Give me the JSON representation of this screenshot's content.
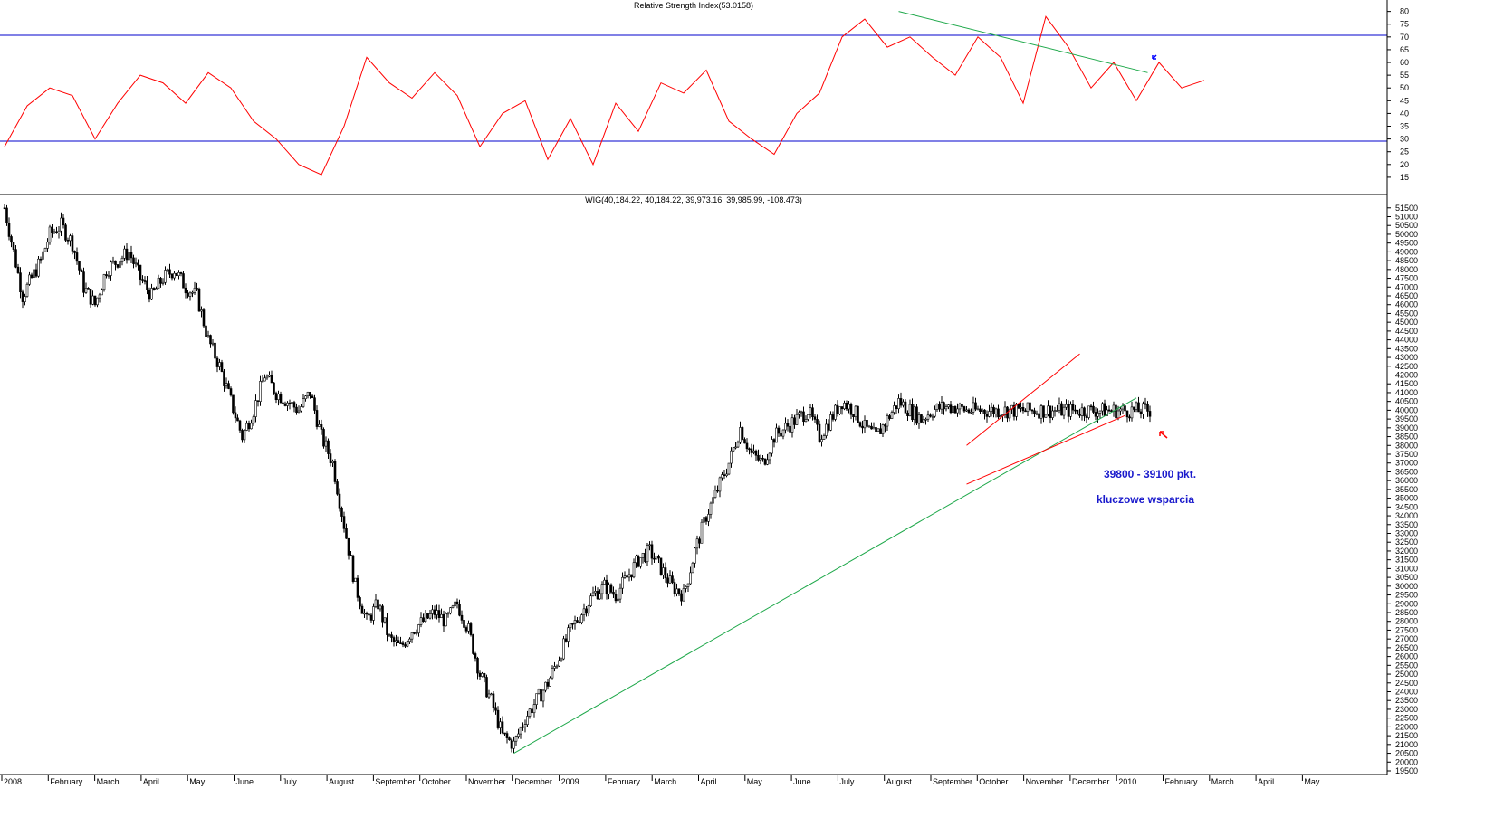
{
  "chart_data": [
    {
      "type": "line",
      "title": "Relative Strength Index(53.0158)",
      "ylim": [
        10,
        82
      ],
      "y_ticks": [
        15,
        20,
        25,
        30,
        35,
        40,
        45,
        50,
        55,
        60,
        65,
        70,
        75,
        80
      ],
      "levels": [
        70,
        30
      ],
      "series": [
        {
          "x": [
            0,
            10,
            20,
            30,
            40,
            50,
            60,
            70,
            80,
            90,
            100,
            110,
            120,
            130,
            140,
            150,
            160,
            170,
            180,
            190,
            200,
            210,
            220,
            230,
            240,
            250,
            260,
            270,
            280,
            290,
            300,
            310,
            320,
            330,
            340,
            350,
            360,
            370,
            380,
            390,
            400,
            410,
            420,
            430,
            440,
            450,
            460,
            470,
            480,
            490,
            500,
            510,
            520,
            530
          ],
          "y": [
            27,
            43,
            50,
            47,
            30,
            44,
            55,
            52,
            44,
            56,
            50,
            37,
            30,
            20,
            16,
            35,
            62,
            52,
            46,
            56,
            47,
            27,
            40,
            45,
            22,
            38,
            20,
            44,
            33,
            52,
            48,
            57,
            37,
            30,
            24,
            40,
            48,
            70,
            77,
            66,
            70,
            62,
            55,
            70,
            62,
            44,
            78,
            66,
            50,
            60,
            45,
            60,
            50,
            53
          ]
        }
      ],
      "trendline": {
        "x": [
          395,
          505
        ],
        "y": [
          80,
          56
        ]
      }
    },
    {
      "type": "candlestick",
      "title": "WIG(40,184.22, 40,184.22, 39,973.16, 39,985.99, -108.473)",
      "ylim": [
        19500,
        51900
      ],
      "y_ticks": [
        19500,
        20000,
        20500,
        21000,
        21500,
        22000,
        22500,
        23000,
        23500,
        24000,
        24500,
        25000,
        25500,
        26000,
        26500,
        27000,
        27500,
        28000,
        28500,
        29000,
        29500,
        30000,
        30500,
        31000,
        31500,
        32000,
        32500,
        33000,
        33500,
        34000,
        34500,
        35000,
        35500,
        36000,
        36500,
        37000,
        37500,
        38000,
        38500,
        39000,
        39500,
        40000,
        40500,
        41000,
        41500,
        42000,
        42500,
        43000,
        43500,
        44000,
        44500,
        45000,
        45500,
        46000,
        46500,
        47000,
        47500,
        48000,
        48500,
        49000,
        49500,
        50000,
        50500,
        51000,
        51500
      ],
      "x_labels": [
        "2008",
        "February",
        "March",
        "April",
        "May",
        "June",
        "July",
        "August",
        "September",
        "October",
        "November",
        "December",
        "2009",
        "February",
        "March",
        "April",
        "May",
        "June",
        "July",
        "August",
        "September",
        "October",
        "November",
        "December",
        "2010",
        "February",
        "March",
        "April",
        "May"
      ],
      "close_path": {
        "x": [
          0,
          4,
          8,
          12,
          16,
          20,
          25,
          30,
          35,
          40,
          45,
          50,
          55,
          60,
          65,
          70,
          75,
          80,
          85,
          90,
          95,
          100,
          105,
          110,
          115,
          120,
          125,
          130,
          135,
          140,
          145,
          150,
          155,
          160,
          165,
          170,
          175,
          180,
          185,
          190,
          195,
          200,
          205,
          210,
          215,
          220,
          225,
          230,
          235,
          240,
          245,
          250,
          255,
          260,
          265,
          270,
          275,
          280,
          285,
          290,
          295,
          300,
          305,
          310,
          315,
          320,
          325,
          330,
          335,
          340,
          345,
          350,
          355,
          360,
          365,
          370,
          375,
          380,
          385,
          390,
          395,
          400,
          405,
          410,
          415,
          420,
          425,
          430,
          435,
          440,
          445,
          450,
          455,
          460,
          465,
          470,
          475,
          480,
          485,
          490,
          495,
          500,
          505
        ],
        "y": [
          51500,
          49000,
          46500,
          47500,
          48500,
          50000,
          50500,
          49500,
          47000,
          46000,
          48000,
          48500,
          49000,
          47500,
          46500,
          47500,
          48000,
          47000,
          46500,
          44000,
          42500,
          40500,
          38500,
          40000,
          42000,
          41000,
          40500,
          40000,
          41000,
          38500,
          37000,
          33500,
          30000,
          28000,
          29000,
          27000,
          26500,
          27500,
          28000,
          28500,
          28000,
          29000,
          27500,
          25000,
          23500,
          21500,
          21000,
          22500,
          23500,
          24500,
          26000,
          27500,
          28500,
          29500,
          30000,
          29500,
          30500,
          31500,
          32000,
          31000,
          30000,
          29500,
          32000,
          34000,
          35500,
          37000,
          39000,
          37500,
          37000,
          38500,
          39000,
          39500,
          40000,
          38500,
          39500,
          40500,
          40000,
          39000,
          38500,
          39500,
          40500,
          40000,
          39500,
          40000,
          40200,
          40184,
          40000,
          39986,
          39986,
          39986,
          39986,
          39986,
          39986,
          39986,
          39986,
          39986,
          39986,
          39986,
          39986,
          39986,
          39986,
          39986,
          39986
        ]
      },
      "support_line": {
        "x": [
          225,
          500
        ],
        "y": [
          20500,
          40700
        ]
      },
      "channel_upper": {
        "x": [
          425,
          475
        ],
        "y": [
          38000,
          43200
        ]
      },
      "channel_lower": {
        "x": [
          425,
          495
        ],
        "y": [
          35800,
          39700
        ]
      },
      "annotations": [
        "39800 - 39100 pkt.",
        "kluczowe wsparcia"
      ]
    }
  ]
}
